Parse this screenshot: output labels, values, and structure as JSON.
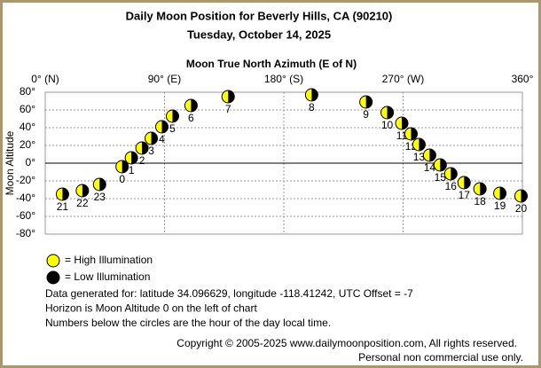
{
  "chart_data": {
    "type": "scatter",
    "title": "Daily Moon Position for Beverly Hills, CA (90210)",
    "subtitle": "Tuesday, October 14, 2025",
    "x_label": "Moon True North Azimuth (E of N)",
    "y_label": "Moon Altitude",
    "xlim": [
      0,
      360
    ],
    "xticks": [
      {
        "value": 0,
        "label": "0° (N)"
      },
      {
        "value": 90,
        "label": "90° (E)"
      },
      {
        "value": 180,
        "label": "180° (S)"
      },
      {
        "value": 270,
        "label": "270° (W)"
      },
      {
        "value": 360,
        "label": "360°"
      }
    ],
    "ylim": [
      -80,
      80
    ],
    "yticks": [
      {
        "value": 80,
        "label": "80°"
      },
      {
        "value": 60,
        "label": "60°"
      },
      {
        "value": 40,
        "label": "40°"
      },
      {
        "value": 20,
        "label": "20°"
      },
      {
        "value": 0,
        "label": "0°"
      },
      {
        "value": -20,
        "label": "-20°"
      },
      {
        "value": -40,
        "label": "-40°"
      },
      {
        "value": -60,
        "label": "-60°"
      },
      {
        "value": -80,
        "label": "-80°"
      }
    ],
    "grid": true,
    "hours": [
      0,
      1,
      2,
      3,
      4,
      5,
      6,
      7,
      8,
      9,
      10,
      11,
      12,
      13,
      14,
      15,
      16,
      17,
      18,
      19,
      20,
      21,
      22,
      23
    ],
    "x": [
      58,
      65,
      73,
      80,
      88,
      96,
      110,
      138,
      201,
      242,
      258,
      269,
      276,
      282,
      290,
      298,
      306,
      316,
      328,
      343,
      359,
      13,
      28,
      41
    ],
    "values": [
      -4,
      6,
      17,
      28,
      41,
      53,
      65,
      75,
      77,
      69,
      57,
      45,
      33,
      21,
      9,
      -2,
      -12,
      -22,
      -29,
      -34,
      -37,
      -35,
      -31,
      -24
    ],
    "high_color": "#ffff00",
    "low_color": "#000000",
    "legend": [
      {
        "label": "= High Illumination",
        "color": "#ffff00"
      },
      {
        "label": "= Low Illumination",
        "color": "#000000"
      }
    ],
    "notes": [
      "Data generated for: latitude 34.096629, longitude -118.41242, UTC Offset = -7",
      "Horizon is Moon Altitude 0 on the left of chart",
      "Numbers below the circles are the hour of the day local time."
    ],
    "copyright": [
      "Copyright © 2005-2025 www.dailymoonposition.com, All rights reserved.",
      "Personal non commercial use only."
    ]
  }
}
